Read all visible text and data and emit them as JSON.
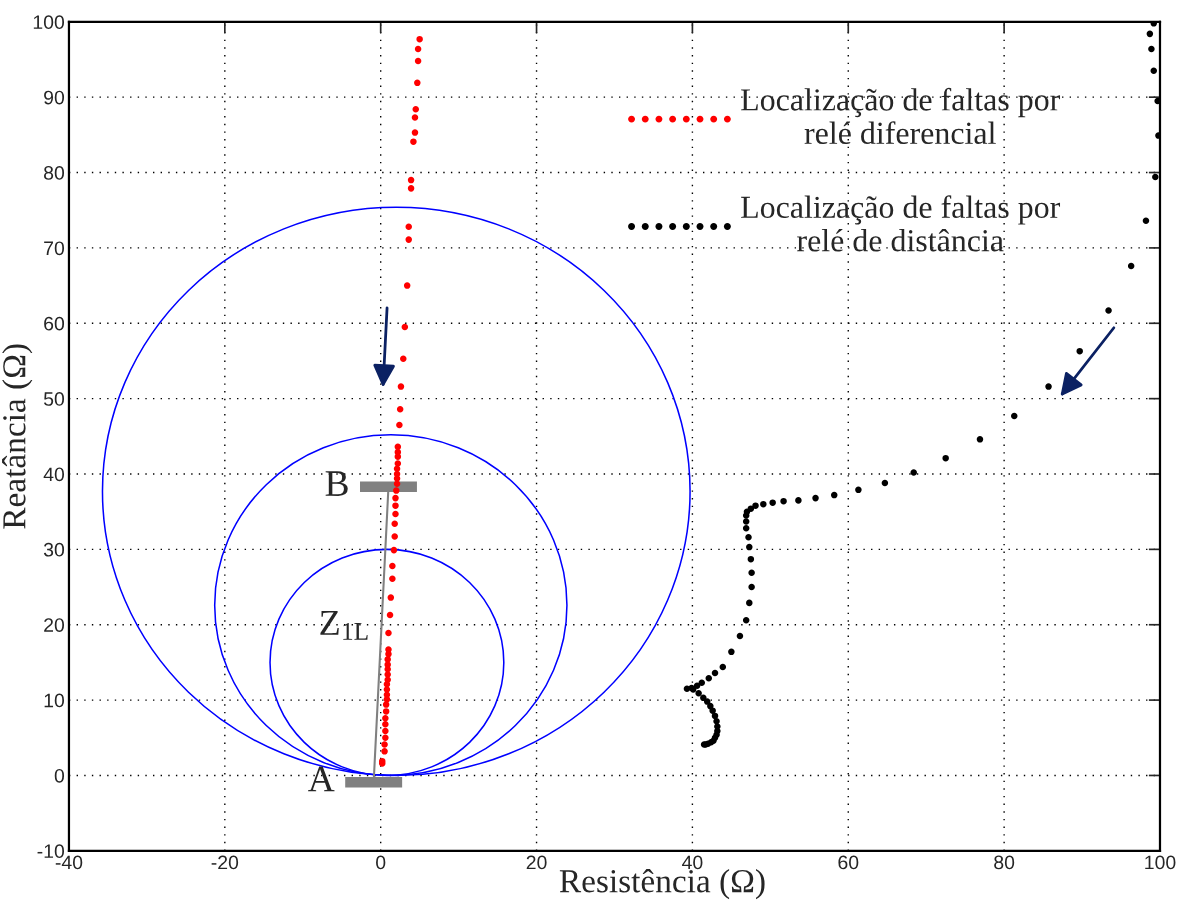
{
  "chart_data": {
    "type": "scatter",
    "xlabel": "Resistência (Ω)",
    "ylabel": "Reatância (Ω)",
    "xlim": [
      -40,
      100
    ],
    "ylim": [
      -10,
      100
    ],
    "xticks": [
      -40,
      -20,
      0,
      20,
      40,
      60,
      80,
      100
    ],
    "yticks": [
      -10,
      0,
      10,
      20,
      30,
      40,
      50,
      60,
      70,
      80,
      90,
      100
    ],
    "grid": true,
    "legend": "top right",
    "annotations": [
      {
        "text": "A",
        "x": -0.9,
        "y": -0.9
      },
      {
        "text": "B",
        "x": 1.0,
        "y": 38.3
      }
    ],
    "series": [
      {
        "type": "line",
        "name": "Z$_{1L}$",
        "color": "#808080",
        "x": [
          -0.9,
          1.0
        ],
        "values": [
          -0.9,
          38.3
        ]
      },
      {
        "name": "Localização de faltas por\nrelé diferencial",
        "color": "#ff0000",
        "marker": "circle",
        "x": [
          5.0,
          4.8,
          4.8,
          4.7,
          4.5,
          4.4,
          4.4,
          4.2,
          3.9,
          3.9,
          3.6,
          3.6,
          3.4,
          3.1,
          2.9,
          2.6,
          2.5,
          2.4,
          2.2,
          2.2,
          2.2,
          2.2,
          2.1,
          2.1,
          2.1,
          2.1,
          2.0,
          1.9,
          1.9,
          1.9,
          1.8,
          1.8,
          1.7,
          1.5,
          1.5,
          1.3,
          1.2,
          1.0,
          1.0,
          1.0,
          0.9,
          0.9,
          0.9,
          0.9,
          0.9,
          0.8,
          0.8,
          0.8,
          0.8,
          0.7,
          0.7,
          0.6,
          0.6,
          0.6,
          0.6,
          0.5,
          0.5,
          0.2,
          0.2
        ],
        "values": [
          97.7,
          96.4,
          94.8,
          91.9,
          88.4,
          87.3,
          85.3,
          84.1,
          79.0,
          77.9,
          72.8,
          71.1,
          65.0,
          59.5,
          55.3,
          51.6,
          48.6,
          46.5,
          43.6,
          42.9,
          42.3,
          41.4,
          40.7,
          40.0,
          39.4,
          38.7,
          37.8,
          36.8,
          35.8,
          34.7,
          33.4,
          31.7,
          29.9,
          27.8,
          26.1,
          23.6,
          21.3,
          18.9,
          16.7,
          16.1,
          15.4,
          14.7,
          14.1,
          13.4,
          12.7,
          12.1,
          11.4,
          10.7,
          10.1,
          9.4,
          8.5,
          7.6,
          6.8,
          5.9,
          5.0,
          4.1,
          3.2,
          1.9,
          1.6
        ]
      },
      {
        "name": "Localização de faltas por\nrelé de distância",
        "color": "#000000",
        "marker": "circle",
        "x": [
          99.2,
          98.7,
          98.9,
          99.2,
          99.7,
          99.8,
          99.4,
          98.2,
          96.3,
          93.4,
          89.7,
          85.7,
          81.3,
          76.9,
          72.5,
          68.4,
          64.7,
          61.3,
          58.2,
          55.8,
          53.6,
          51.7,
          50.3,
          49.1,
          48.1,
          47.5,
          47.0,
          46.9,
          46.9,
          46.9,
          47.2,
          47.3,
          47.5,
          47.6,
          47.6,
          47.3,
          46.9,
          46.1,
          45.0,
          43.9,
          42.9,
          42.1,
          41.2,
          40.6,
          39.9,
          39.3,
          40.1,
          40.8,
          41.4,
          41.9,
          42.3,
          42.6,
          42.9,
          43.1,
          43.2,
          43.2,
          43.1,
          42.9,
          42.7,
          42.4,
          42.0,
          41.7,
          41.5
        ],
        "values": [
          99.8,
          98.4,
          96.4,
          93.5,
          89.5,
          84.9,
          79.4,
          73.6,
          67.6,
          61.7,
          56.3,
          51.6,
          47.7,
          44.6,
          42.1,
          40.2,
          38.8,
          37.9,
          37.2,
          36.8,
          36.5,
          36.4,
          36.2,
          36.0,
          35.8,
          35.4,
          35.0,
          34.5,
          33.7,
          32.8,
          31.6,
          30.3,
          28.7,
          26.9,
          25.0,
          22.9,
          20.6,
          18.5,
          16.4,
          14.4,
          13.6,
          12.9,
          12.3,
          11.9,
          11.6,
          11.5,
          11.4,
          10.9,
          10.3,
          9.8,
          9.2,
          8.6,
          7.9,
          7.2,
          6.5,
          5.9,
          5.4,
          5.0,
          4.6,
          4.4,
          4.2,
          4.1,
          4.1
        ]
      }
    ]
  }
}
